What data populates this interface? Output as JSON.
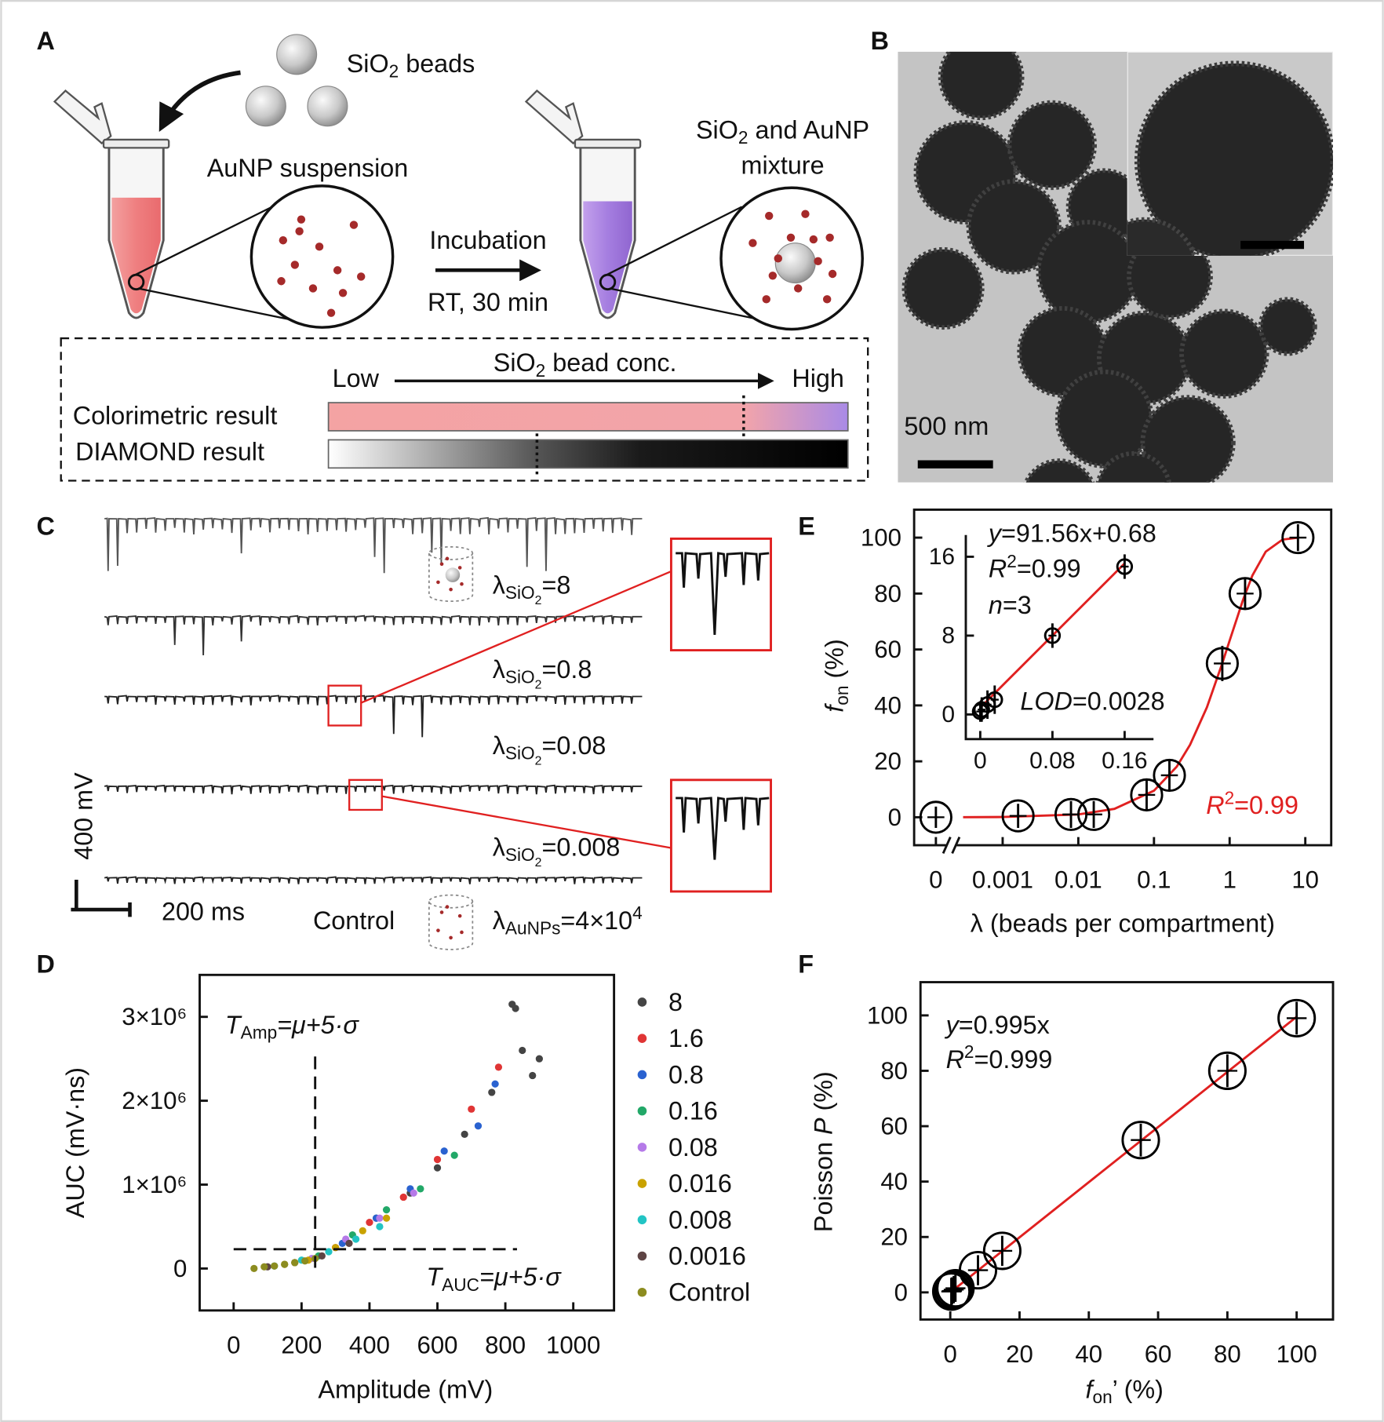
{
  "panels": {
    "A": {
      "label": "A",
      "beads": [
        "SiO",
        "2",
        " beads"
      ],
      "suspension": "AuNP suspension",
      "incubation": "Incubation",
      "condition": "RT, 30 min",
      "mixture_line1": [
        "SiO",
        "2",
        " and AuNP"
      ],
      "mixture_line2": "mixture",
      "low": "Low",
      "conc": [
        "SiO",
        "2",
        " bead conc."
      ],
      "high": "High",
      "colorimetric": "Colorimetric result",
      "diamond": "DIAMOND result"
    },
    "B": {
      "label": "B",
      "scale": "500 nm"
    },
    "C": {
      "label": "C",
      "traces": [
        [
          "λ",
          "SiO",
          "2",
          "=8"
        ],
        [
          "λ",
          "SiO",
          "2",
          "=0.8"
        ],
        [
          "λ",
          "SiO",
          "2",
          "=0.08"
        ],
        [
          "λ",
          "SiO",
          "2",
          "=0.008"
        ]
      ],
      "control": "Control",
      "control_lambda": [
        "λ",
        "AuNPs",
        "=4×10",
        "4"
      ],
      "scale_y": "400 mV",
      "scale_x": "200 ms"
    }
  },
  "chart_data": [
    {
      "type": "scatter",
      "panel": "D",
      "xlabel": "Amplitude (mV)",
      "ylabel": "AUC (mV·ns)",
      "xlim": [
        -100,
        1120
      ],
      "ylim": [
        -500000,
        3500000
      ],
      "xticks": [
        0,
        200,
        400,
        600,
        800,
        1000
      ],
      "yticks": [
        0,
        {
          "value": 1000000,
          "label": "1×10⁶"
        },
        {
          "value": 2000000,
          "label": "2×10⁶"
        },
        {
          "value": 3000000,
          "label": "3×10⁶"
        }
      ],
      "legend": "right",
      "thresholds": {
        "x": 240,
        "y": 230000
      },
      "annotations": [
        {
          "text": [
            "T",
            "Amp",
            "=μ+5·σ"
          ]
        },
        {
          "text": [
            "T",
            "AUC",
            "=μ+5·σ"
          ]
        }
      ],
      "series": [
        {
          "name": "8",
          "color": "#444444",
          "x": [
            420,
            520,
            600,
            680,
            760,
            820,
            830,
            850,
            880,
            900
          ],
          "values": [
            600000,
            900000,
            1200000,
            1600000,
            2100000,
            3150000,
            3100000,
            2600000,
            2300000,
            2500000
          ]
        },
        {
          "name": "1.6",
          "color": "#e03535",
          "x": [
            300,
            400,
            500,
            600,
            700,
            780
          ],
          "values": [
            250000,
            550000,
            850000,
            1300000,
            1900000,
            2400000
          ]
        },
        {
          "name": "0.8",
          "color": "#2a62d0",
          "x": [
            320,
            420,
            520,
            620,
            720,
            770
          ],
          "values": [
            300000,
            600000,
            950000,
            1400000,
            1700000,
            2200000
          ]
        },
        {
          "name": "0.16",
          "color": "#22a868",
          "x": [
            250,
            350,
            450,
            550,
            650
          ],
          "values": [
            150000,
            400000,
            700000,
            950000,
            1350000
          ]
        },
        {
          "name": "0.08",
          "color": "#b57ae8",
          "x": [
            230,
            330,
            430,
            530
          ],
          "values": [
            120000,
            350000,
            600000,
            900000
          ]
        },
        {
          "name": "0.016",
          "color": "#c9a200",
          "x": [
            150,
            220,
            300,
            380,
            450
          ],
          "values": [
            50000,
            100000,
            250000,
            450000,
            600000
          ]
        },
        {
          "name": "0.008",
          "color": "#22c4c4",
          "x": [
            120,
            200,
            280,
            360,
            430
          ],
          "values": [
            30000,
            100000,
            200000,
            350000,
            500000
          ]
        },
        {
          "name": "0.0016",
          "color": "#5e4444",
          "x": [
            100,
            180,
            260,
            340
          ],
          "values": [
            20000,
            70000,
            150000,
            300000
          ]
        },
        {
          "name": "Control",
          "color": "#8c8c20",
          "x": [
            60,
            90,
            120,
            150,
            180,
            210,
            240
          ],
          "values": [
            0,
            20000,
            30000,
            50000,
            70000,
            90000,
            120000
          ]
        }
      ]
    },
    {
      "type": "scatter",
      "panel": "E",
      "xscale": "log",
      "axis_break": true,
      "xlabel": "λ (beads per compartment)",
      "ylabel": [
        "f",
        "on",
        " (%)"
      ],
      "xlim": [
        0.0003,
        22
      ],
      "ylim": [
        -10,
        110
      ],
      "xticks": [
        0,
        0.001,
        0.01,
        0.1,
        1,
        10
      ],
      "yticks": [
        0,
        20,
        40,
        60,
        80,
        100
      ],
      "series": [
        {
          "color": "#000000",
          "x": [
            0,
            0.0016,
            0.008,
            0.016,
            0.08,
            0.16,
            0.8,
            1.6,
            8
          ],
          "values": [
            0,
            0.5,
            1,
            1,
            8,
            15,
            55,
            80,
            100
          ],
          "errors": [
            0.5,
            1,
            1.5,
            1.5,
            2,
            2,
            3,
            2,
            1.5
          ]
        }
      ],
      "fit": {
        "color": "#e02020",
        "x": [
          0.0003,
          0.001,
          0.01,
          0.03,
          0.1,
          0.2,
          0.3,
          0.5,
          0.8,
          1,
          1.5,
          2,
          3,
          5,
          8
        ],
        "values": [
          0.03,
          0.1,
          1,
          3,
          9.5,
          18.1,
          25.9,
          39.3,
          55.1,
          63.2,
          77.7,
          86.5,
          95,
          99.3,
          99.97
        ]
      },
      "annotations": [
        {
          "text": [
            "y",
            "=91.56x+0.68"
          ]
        },
        {
          "text": [
            "R",
            "2",
            "=0.99"
          ]
        },
        {
          "text": [
            "n",
            "=3"
          ]
        },
        {
          "text": [
            "LOD",
            "=0.0028"
          ]
        },
        {
          "text": [
            "R",
            "2",
            "=0.99"
          ],
          "color": "#e02020"
        }
      ],
      "inset": {
        "xlim": [
          -0.016,
          0.192
        ],
        "ylim": [
          -2.5,
          18.2
        ],
        "xticks": [
          0,
          0.08,
          0.16
        ],
        "yticks": [
          0,
          8,
          16
        ],
        "series": [
          {
            "color": "#000000",
            "x": [
              0,
              0.0016,
              0.008,
              0.016,
              0.08,
              0.16
            ],
            "values": [
              0.3,
              0.5,
              1,
              1.5,
              8,
              15
            ],
            "errors": [
              0.6,
              0.8,
              1,
              1,
              0.8,
              0.8
            ]
          }
        ],
        "fit": {
          "color": "#e02020",
          "x": [
            0,
            0.16
          ],
          "values": [
            0.68,
            15.33
          ]
        }
      }
    },
    {
      "type": "scatter",
      "panel": "F",
      "xlabel": [
        "f",
        "on",
        "’ (%)"
      ],
      "ylabel": [
        "Poisson ",
        "P",
        " (%)"
      ],
      "xlim": [
        -8.6,
        110.5
      ],
      "ylim": [
        -9.8,
        112
      ],
      "xticks": [
        0,
        20,
        40,
        60,
        80,
        100
      ],
      "yticks": [
        0,
        20,
        40,
        60,
        80,
        100
      ],
      "series": [
        {
          "color": "#000000",
          "x": [
            0.3,
            0.5,
            1,
            1.5,
            8,
            15,
            55,
            80,
            100
          ],
          "values": [
            0.3,
            0.5,
            1,
            1.5,
            8,
            15,
            55,
            80,
            99
          ],
          "errors": [
            1,
            1,
            1,
            1,
            1.5,
            1.5,
            2,
            2,
            2
          ]
        }
      ],
      "fit": {
        "color": "#e02020",
        "x": [
          0,
          100
        ],
        "values": [
          0,
          99.5
        ]
      },
      "annotations": [
        {
          "text": [
            "y",
            "=0.995x"
          ]
        },
        {
          "text": [
            "R",
            "2",
            "=0.999"
          ]
        }
      ]
    }
  ]
}
